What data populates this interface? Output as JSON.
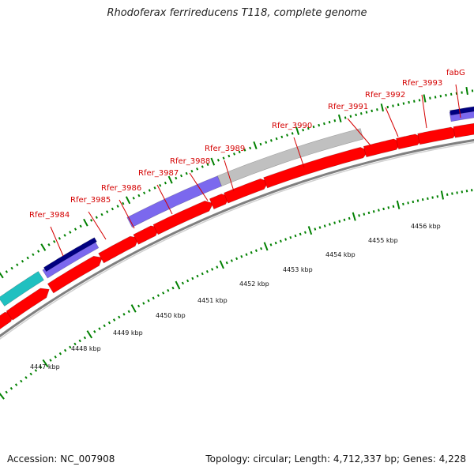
{
  "title": "Rhodoferax ferrireducens T118, complete genome",
  "footer": {
    "accession": "Accession: NC_007908",
    "summary": "Topology: circular; Length: 4,712,337 bp; Genes: 4,228"
  },
  "colors": {
    "forward_gene": "#ff0000",
    "rna_light": "#7b68ee",
    "rna_dark": "#000080",
    "gray_feature": "#c0c0c0",
    "cyan_feature": "#20c0c0",
    "label_red": "#d40000",
    "tick_green": "#008000",
    "backbone": "#808080"
  },
  "gene_labels": [
    "Rfer_3984",
    "Rfer_3985",
    "Rfer_3986",
    "Rfer_3987",
    "Rfer_3988",
    "Rfer_3989",
    "Rfer_3990",
    "Rfer_3991",
    "Rfer_3992",
    "Rfer_3993",
    "fabG"
  ],
  "kbp_labels": [
    "4447 kbp",
    "4448 kbp",
    "4449 kbp",
    "4450 kbp",
    "4451 kbp",
    "4452 kbp",
    "4453 kbp",
    "4454 kbp",
    "4455 kbp",
    "4456 kbp"
  ]
}
